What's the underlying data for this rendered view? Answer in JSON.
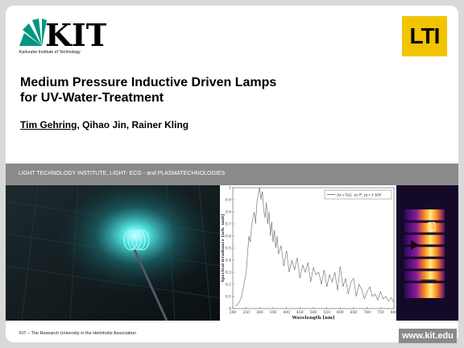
{
  "header": {
    "kit_logo_text": "KIT",
    "kit_caption": "Karlsruhe Institute of Technology",
    "lti_logo_text": "LTI"
  },
  "title": {
    "line1": "Medium Pressure Inductive Driven Lamps",
    "line2": "for UV-Water-Treatment"
  },
  "authors": {
    "first": "Tim Gehring",
    "rest": ", Qihao Jin, Rainer Kling"
  },
  "band": {
    "text": "LIGHT TECHNOLOGY INSTITUTE, LIGHT-  ECG - and PLASMATECHNOLOGIES"
  },
  "footer": {
    "text": "KIT –  The Research University in the Helmholtz Association",
    "url": "www.kit.edu"
  },
  "colors": {
    "kit_green": "#009682",
    "lti_yellow": "#f2c400",
    "band_grey": "#8a8a8a"
  },
  "chart_data": {
    "type": "line",
    "xlabel": "Wavelength [nm]",
    "ylabel": "Spectral irradiance [arb. unit]",
    "legend": "Ar+TaI, at P_in=1 kW",
    "xlim": [
      200,
      800
    ],
    "ylim": [
      0,
      1
    ],
    "xticks": [
      "200",
      "250",
      "300",
      "350",
      "400",
      "450",
      "500",
      "550",
      "600",
      "650",
      "700",
      "750",
      "800"
    ],
    "yticks": [
      "0",
      "0.1",
      "0.2",
      "0.3",
      "0.4",
      "0.5",
      "0.6",
      "0.7",
      "0.8",
      "0.9",
      "1"
    ],
    "series": [
      {
        "name": "Ar+TaI, at P_in=1 kW",
        "x": [
          210,
          220,
          230,
          240,
          250,
          255,
          260,
          265,
          270,
          275,
          280,
          285,
          290,
          295,
          300,
          305,
          310,
          315,
          320,
          325,
          330,
          335,
          340,
          345,
          350,
          355,
          360,
          365,
          370,
          380,
          390,
          400,
          410,
          420,
          430,
          440,
          450,
          460,
          470,
          480,
          490,
          500,
          510,
          520,
          530,
          540,
          550,
          560,
          570,
          580,
          590,
          600,
          610,
          620,
          630,
          640,
          650,
          660,
          670,
          680,
          690,
          700,
          710,
          720,
          730,
          740,
          750,
          760,
          770,
          780,
          790,
          800
        ],
        "y": [
          0.02,
          0.04,
          0.08,
          0.18,
          0.3,
          0.45,
          0.6,
          0.55,
          0.68,
          0.75,
          0.8,
          0.7,
          0.88,
          0.95,
          1.0,
          0.9,
          0.97,
          0.82,
          0.75,
          0.88,
          0.7,
          0.8,
          0.6,
          0.72,
          0.55,
          0.65,
          0.5,
          0.6,
          0.45,
          0.52,
          0.35,
          0.48,
          0.3,
          0.4,
          0.32,
          0.42,
          0.25,
          0.36,
          0.3,
          0.38,
          0.22,
          0.34,
          0.28,
          0.3,
          0.2,
          0.32,
          0.18,
          0.28,
          0.22,
          0.3,
          0.15,
          0.35,
          0.18,
          0.25,
          0.12,
          0.22,
          0.25,
          0.1,
          0.2,
          0.16,
          0.08,
          0.14,
          0.18,
          0.1,
          0.12,
          0.07,
          0.14,
          0.08,
          0.1,
          0.06,
          0.09,
          0.05
        ]
      }
    ]
  }
}
